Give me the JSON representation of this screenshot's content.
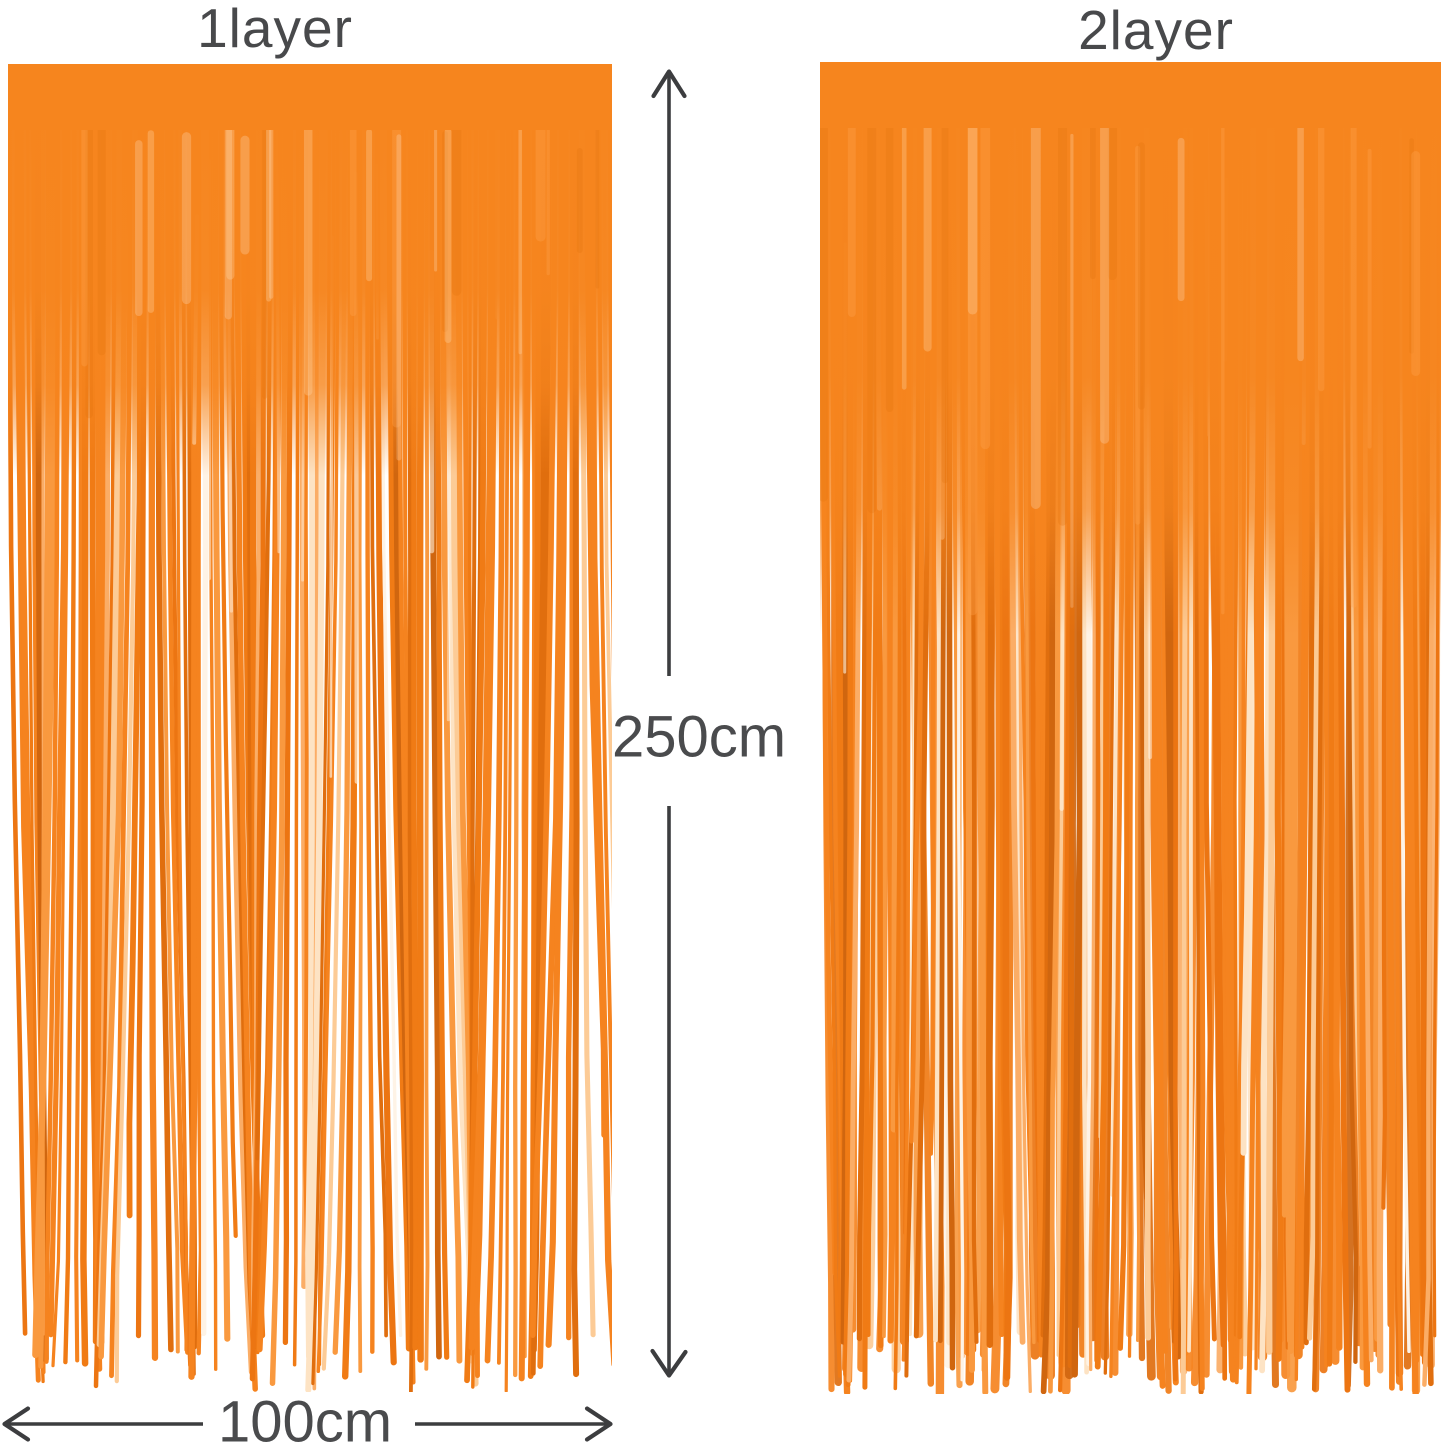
{
  "labels": {
    "height_dimension": "250cm",
    "width_dimension": "100cm"
  },
  "curtains": [
    {
      "label": "1layer",
      "layers": 1,
      "seed": 7,
      "strands": 112,
      "gap_amplitude": 26,
      "fade_end": 0.31,
      "reflect": 11
    },
    {
      "label": "2layer",
      "layers": 2,
      "seed": 13,
      "strands": 128,
      "gap_amplitude": 13,
      "fade_end": 0.43,
      "reflect": 8
    }
  ],
  "colors": {
    "background": "#ffffff",
    "label_text": "#48494b",
    "dimension_text": "#4a4b4d",
    "arrow": "#3c3d3f",
    "foil_base": "#f6851e",
    "foil_highlight": "#fff3e2",
    "palette": [
      {
        "c": "#f5831f",
        "w": 30
      },
      {
        "c": "#f07b15",
        "w": 16
      },
      {
        "c": "#ec7512",
        "w": 9
      },
      {
        "c": "#e06e0e",
        "w": 9
      },
      {
        "c": "#d0660f",
        "w": 5
      },
      {
        "c": "#f9993f",
        "w": 11
      },
      {
        "c": "#fbad66",
        "w": 7
      },
      {
        "c": "#fccb96",
        "w": 6
      },
      {
        "c": "#fde3c4",
        "w": 4
      },
      {
        "c": "#fef3e6",
        "w": 3
      }
    ]
  }
}
